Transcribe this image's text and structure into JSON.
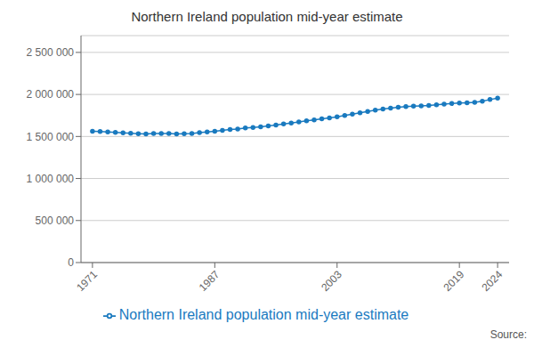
{
  "chart_data": {
    "type": "line",
    "title": "Northern Ireland population mid-year estimate",
    "x": [
      1971,
      1972,
      1973,
      1974,
      1975,
      1976,
      1977,
      1978,
      1979,
      1980,
      1981,
      1982,
      1983,
      1984,
      1985,
      1986,
      1987,
      1988,
      1989,
      1990,
      1991,
      1992,
      1993,
      1994,
      1995,
      1996,
      1997,
      1998,
      1999,
      2000,
      2001,
      2002,
      2003,
      2004,
      2005,
      2006,
      2007,
      2008,
      2009,
      2010,
      2011,
      2012,
      2013,
      2014,
      2015,
      2016,
      2017,
      2018,
      2019,
      2020,
      2021,
      2022,
      2023,
      2024
    ],
    "series": [
      {
        "name": "Northern Ireland population mid-year estimate",
        "color": "#1a7abf",
        "marker": "circle",
        "values": [
          1561000,
          1558000,
          1554000,
          1548000,
          1543000,
          1537000,
          1533000,
          1529000,
          1534000,
          1536000,
          1534000,
          1531000,
          1533000,
          1535000,
          1545000,
          1555000,
          1562000,
          1572000,
          1582000,
          1589000,
          1601000,
          1607000,
          1614000,
          1625000,
          1637000,
          1648000,
          1659000,
          1672000,
          1685000,
          1697000,
          1709000,
          1721000,
          1733000,
          1749000,
          1765000,
          1781000,
          1797000,
          1813000,
          1827000,
          1838000,
          1847000,
          1855000,
          1860000,
          1864000,
          1869000,
          1878000,
          1885000,
          1892000,
          1898000,
          1901000,
          1906000,
          1920000,
          1939000,
          1955000
        ]
      }
    ],
    "xlim": [
      1969.5,
      2025.5
    ],
    "xticks": [
      1971,
      1987,
      2003,
      2019,
      2024
    ],
    "ylim": [
      0,
      2700000
    ],
    "yticks": [
      0,
      {
        "value": 500000,
        "label": "500 000"
      },
      {
        "value": 1000000,
        "label": "1 000 000"
      },
      {
        "value": 1500000,
        "label": "1 500 000"
      },
      {
        "value": 2000000,
        "label": "2 000 000"
      },
      {
        "value": 2500000,
        "label": "2 500 000"
      }
    ],
    "grid": true,
    "legend": "bottom",
    "annotations": [
      "Source:"
    ]
  }
}
